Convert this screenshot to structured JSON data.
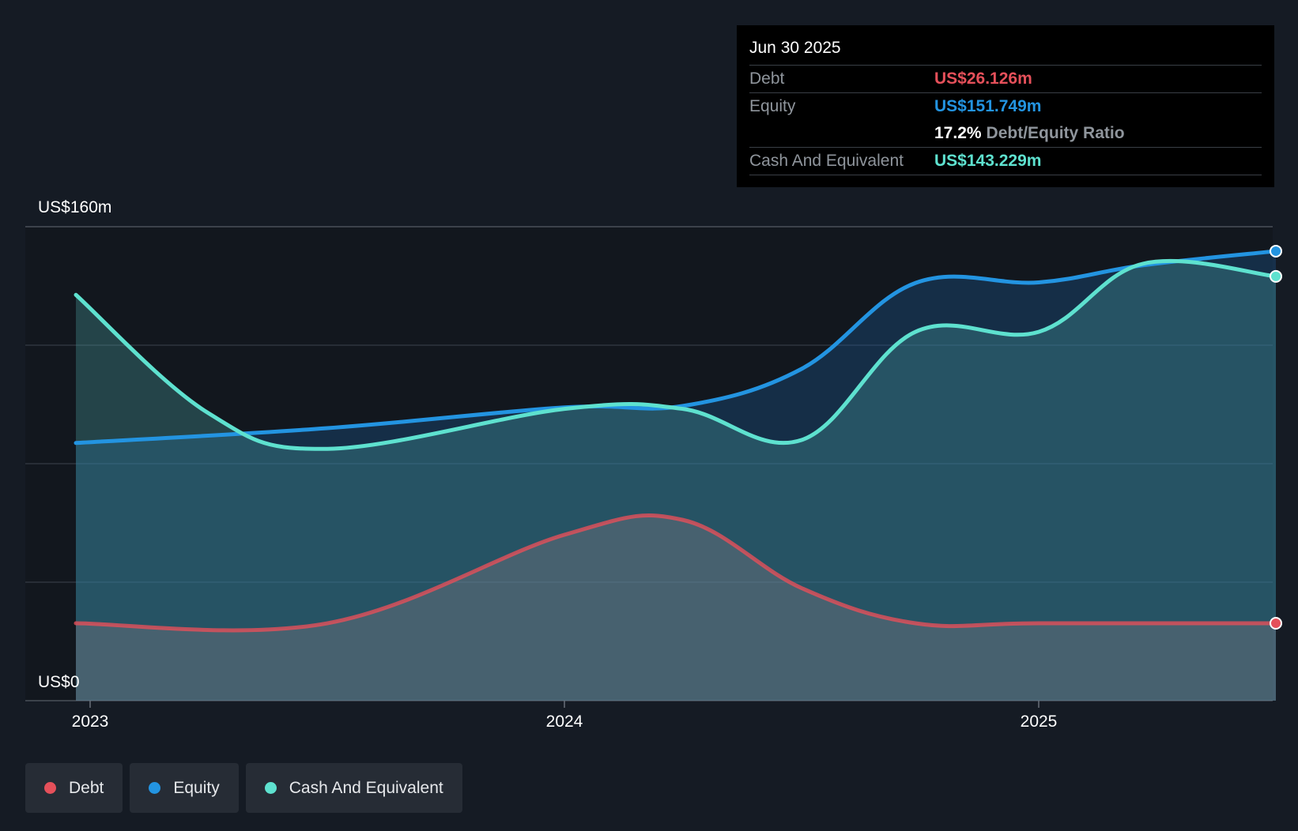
{
  "chart_data": {
    "type": "area",
    "y_top_label": "US$160m",
    "y_bottom_label": "US$0",
    "ylim": [
      0,
      160
    ],
    "x_ticks": [
      {
        "label": "2023",
        "x": 2023.0
      },
      {
        "label": "2024",
        "x": 2024.0
      },
      {
        "label": "2025",
        "x": 2025.0
      }
    ],
    "series": [
      {
        "name": "Equity",
        "color": "#2394e1",
        "x": [
          2022.97,
          2023.5,
          2024.0,
          2024.25,
          2024.5,
          2024.74,
          2025.0,
          2025.22,
          2025.5
        ],
        "values": [
          87,
          92,
          99,
          99.5,
          112,
          141,
          141.2,
          147,
          151.749
        ]
      },
      {
        "name": "Cash And Equivalent",
        "color": "#5ee1cf",
        "x": [
          2022.97,
          2023.25,
          2023.5,
          2024.0,
          2024.25,
          2024.5,
          2024.74,
          2025.0,
          2025.22,
          2025.5
        ],
        "values": [
          137,
          97,
          85,
          98.5,
          98.5,
          88,
          124.5,
          124.5,
          147.5,
          143.229
        ]
      },
      {
        "name": "Debt",
        "color": "#e5505a",
        "x": [
          2022.97,
          2023.5,
          2024.0,
          2024.25,
          2024.5,
          2024.74,
          2025.0,
          2025.5
        ],
        "values": [
          26.126,
          26.126,
          56,
          61,
          38,
          26.126,
          26.126,
          26.126
        ]
      }
    ]
  },
  "tooltip": {
    "date": "Jun 30 2025",
    "debt_label": "Debt",
    "debt_value": "US$26.126m",
    "equity_label": "Equity",
    "equity_value": "US$151.749m",
    "ratio_value": "17.2%",
    "ratio_label": "Debt/Equity Ratio",
    "cash_label": "Cash And Equivalent",
    "cash_value": "US$143.229m"
  },
  "legend": [
    {
      "label": "Debt",
      "color": "#e5505a"
    },
    {
      "label": "Equity",
      "color": "#2394e1"
    },
    {
      "label": "Cash And Equivalent",
      "color": "#5ee1cf"
    }
  ]
}
